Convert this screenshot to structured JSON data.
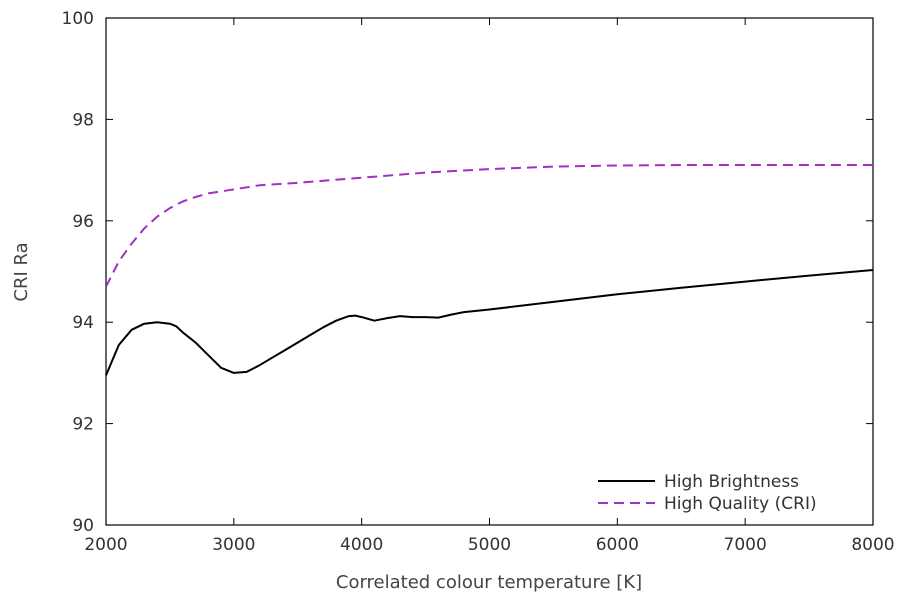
{
  "chart_data": {
    "type": "line",
    "xlabel": "Correlated colour temperature [K]",
    "ylabel": "CRI Ra",
    "xlim": [
      2000,
      8000
    ],
    "ylim": [
      90,
      100
    ],
    "xticks": [
      2000,
      3000,
      4000,
      5000,
      6000,
      7000,
      8000
    ],
    "yticks": [
      90,
      92,
      94,
      96,
      98,
      100
    ],
    "grid": false,
    "legend_position": "bottom-right",
    "series": [
      {
        "name": "High Brightness",
        "color": "#000000",
        "style": "solid",
        "x": [
          2000,
          2100,
          2200,
          2300,
          2400,
          2500,
          2550,
          2600,
          2700,
          2800,
          2900,
          3000,
          3100,
          3200,
          3300,
          3400,
          3500,
          3600,
          3700,
          3800,
          3900,
          3950,
          4000,
          4100,
          4200,
          4300,
          4400,
          4500,
          4600,
          4700,
          4800,
          5000,
          5500,
          6000,
          6500,
          7000,
          7500,
          8000
        ],
        "y": [
          92.95,
          93.55,
          93.85,
          93.97,
          94.0,
          93.97,
          93.92,
          93.8,
          93.6,
          93.35,
          93.1,
          93.0,
          93.02,
          93.15,
          93.3,
          93.45,
          93.6,
          93.75,
          93.9,
          94.03,
          94.12,
          94.13,
          94.1,
          94.03,
          94.08,
          94.12,
          94.1,
          94.1,
          94.09,
          94.15,
          94.2,
          94.25,
          94.4,
          94.55,
          94.68,
          94.8,
          94.92,
          95.03
        ]
      },
      {
        "name": "High Quality (CRI)",
        "color": "#a030c8",
        "style": "dashed",
        "x": [
          2000,
          2100,
          2200,
          2300,
          2400,
          2500,
          2600,
          2700,
          2800,
          2900,
          3000,
          3200,
          3500,
          4000,
          4500,
          5000,
          5500,
          6000,
          6500,
          7000,
          7500,
          8000
        ],
        "y": [
          94.7,
          95.2,
          95.55,
          95.85,
          96.08,
          96.25,
          96.38,
          96.47,
          96.54,
          96.58,
          96.62,
          96.7,
          96.75,
          96.85,
          96.95,
          97.02,
          97.07,
          97.09,
          97.1,
          97.1,
          97.1,
          97.1
        ]
      }
    ]
  }
}
